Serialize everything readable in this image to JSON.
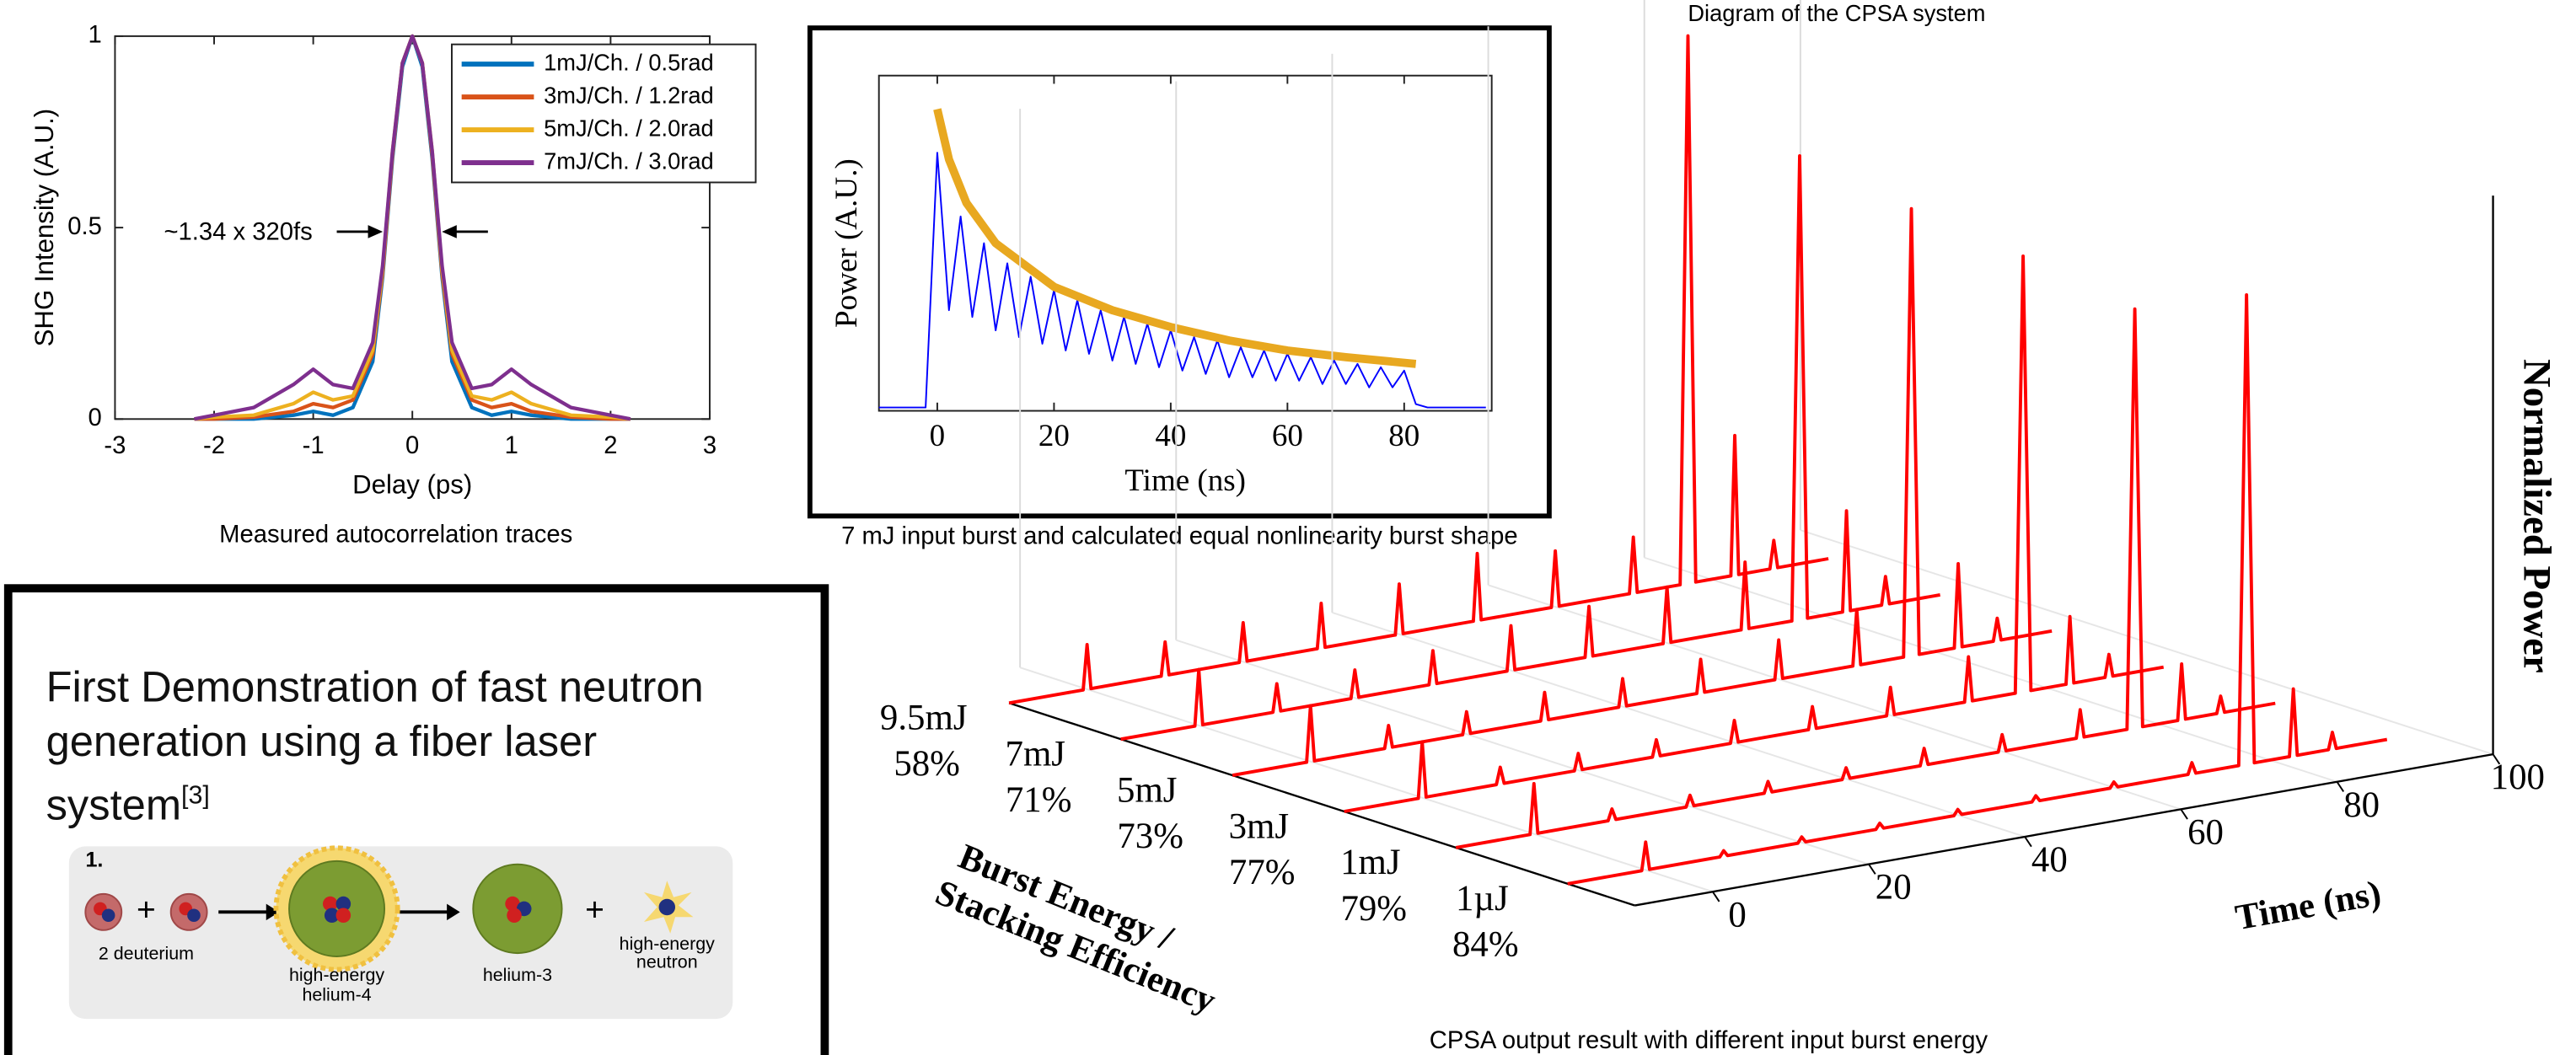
{
  "header": {
    "title": "Diagram of the CPSA system"
  },
  "chart_data": [
    {
      "type": "line",
      "caption": "Measured autocorrelation traces",
      "xlabel": "Delay (ps)",
      "ylabel": "SHG Intensity (A.U.)",
      "annotation": "~1.34 x 320fs",
      "x": [
        -2.2,
        -2,
        -1.6,
        -1.2,
        -1,
        -0.8,
        -0.6,
        -0.4,
        -0.3,
        -0.2,
        -0.1,
        0,
        0.1,
        0.2,
        0.3,
        0.4,
        0.6,
        0.8,
        1,
        1.2,
        1.6,
        2,
        2.2
      ],
      "xlim": [
        -3,
        3
      ],
      "xticks": [
        -3,
        -2,
        -1,
        0,
        1,
        2,
        3
      ],
      "ylim": [
        0,
        1
      ],
      "yticks": [
        0,
        0.5,
        1
      ],
      "legend": "upper right",
      "series": [
        {
          "name": "1mJ/Ch. / 0.5rad",
          "color": "#0072bd",
          "values": [
            0,
            0,
            0,
            0.01,
            0.02,
            0.01,
            0.03,
            0.15,
            0.37,
            0.68,
            0.92,
            1,
            0.92,
            0.68,
            0.37,
            0.15,
            0.03,
            0.01,
            0.02,
            0.01,
            0,
            0,
            0
          ]
        },
        {
          "name": "3mJ/Ch. / 1.2rad",
          "color": "#d95319",
          "values": [
            0,
            0,
            0.005,
            0.02,
            0.04,
            0.03,
            0.05,
            0.17,
            0.38,
            0.69,
            0.93,
            1,
            0.93,
            0.69,
            0.38,
            0.17,
            0.05,
            0.03,
            0.04,
            0.02,
            0.005,
            0,
            0
          ]
        },
        {
          "name": "5mJ/Ch. / 2.0rad",
          "color": "#edb120",
          "values": [
            0,
            0.005,
            0.01,
            0.04,
            0.07,
            0.05,
            0.06,
            0.18,
            0.39,
            0.7,
            0.93,
            1,
            0.93,
            0.7,
            0.39,
            0.18,
            0.06,
            0.05,
            0.07,
            0.04,
            0.01,
            0.005,
            0
          ]
        },
        {
          "name": "7mJ/Ch. / 3.0rad",
          "color": "#7e2f8e",
          "values": [
            0,
            0.01,
            0.03,
            0.09,
            0.13,
            0.09,
            0.08,
            0.2,
            0.4,
            0.7,
            0.93,
            1,
            0.93,
            0.7,
            0.4,
            0.2,
            0.08,
            0.09,
            0.13,
            0.09,
            0.03,
            0.01,
            0
          ]
        }
      ]
    },
    {
      "type": "line",
      "caption": "7 mJ input burst and calculated equal nonlinearity burst shape",
      "xlabel": "Time (ns)",
      "ylabel": "Power (A.U.)",
      "xlim": [
        -10,
        95
      ],
      "xticks": [
        0,
        20,
        40,
        60,
        80
      ],
      "ylim": [
        0,
        1
      ],
      "series": [
        {
          "color": "#0000ff",
          "width": 1,
          "x": [
            -10,
            -8,
            -6,
            -4,
            -2,
            0,
            2,
            4,
            6,
            8,
            10,
            12,
            14,
            16,
            18,
            20,
            22,
            24,
            26,
            28,
            30,
            32,
            34,
            36,
            38,
            40,
            42,
            44,
            46,
            48,
            50,
            52,
            54,
            56,
            58,
            60,
            62,
            64,
            66,
            68,
            70,
            72,
            74,
            76,
            78,
            80,
            82,
            84,
            86,
            88,
            90,
            92,
            94
          ],
          "values": [
            0.01,
            0.01,
            0.01,
            0.01,
            0.01,
            0.77,
            0.3,
            0.58,
            0.28,
            0.5,
            0.24,
            0.44,
            0.22,
            0.4,
            0.2,
            0.36,
            0.18,
            0.33,
            0.17,
            0.3,
            0.15,
            0.28,
            0.14,
            0.26,
            0.13,
            0.24,
            0.12,
            0.22,
            0.11,
            0.21,
            0.1,
            0.19,
            0.1,
            0.18,
            0.09,
            0.17,
            0.09,
            0.16,
            0.08,
            0.15,
            0.08,
            0.14,
            0.07,
            0.13,
            0.07,
            0.12,
            0.02,
            0.01,
            0.01,
            0.01,
            0.01,
            0.01,
            0.01
          ]
        },
        {
          "color": "#e8a820",
          "width": 5,
          "x": [
            0,
            2,
            5,
            10,
            20,
            30,
            40,
            50,
            60,
            70,
            82
          ],
          "values": [
            0.9,
            0.75,
            0.62,
            0.5,
            0.37,
            0.3,
            0.25,
            0.21,
            0.18,
            0.16,
            0.14
          ]
        }
      ]
    },
    {
      "type": "waterfall3d",
      "caption": "CPSA output result with different input burst energy",
      "xlabel": "Time (ns)",
      "ylabel": [
        "Burst Energy /",
        "Stacking Efficiency"
      ],
      "zlabel": "Normalized Power",
      "x": [
        -10,
        -0.5,
        0,
        0.5,
        9.5,
        10,
        10.5,
        19.5,
        20,
        20.5,
        29.5,
        30,
        30.5,
        39.5,
        40,
        40.5,
        49.5,
        50,
        50.5,
        59.5,
        60,
        60.5,
        69.5,
        70,
        70.5,
        76,
        77,
        78,
        82.5,
        83,
        83.5,
        87.5,
        88,
        88.5,
        95
      ],
      "xlim": [
        -10,
        100
      ],
      "xticks": [
        0,
        20,
        40,
        60,
        80,
        100
      ],
      "zlim": [
        0,
        1
      ],
      "series": [
        {
          "name": "9.5mJ",
          "efficiency": "58%",
          "color": "#ff0000",
          "values": [
            0,
            0,
            0.08,
            0,
            0,
            0.06,
            0,
            0,
            0.07,
            0,
            0,
            0.08,
            0,
            0,
            0.09,
            0,
            0,
            0.12,
            0,
            0,
            0.1,
            0,
            0,
            0.1,
            0,
            0,
            0.98,
            0,
            0,
            0.25,
            0,
            0,
            0.05,
            0,
            0
          ]
        },
        {
          "name": "7mJ",
          "efficiency": "71%",
          "color": "#ff0000",
          "values": [
            0,
            0,
            0.1,
            0,
            0,
            0.05,
            0,
            0,
            0.05,
            0,
            0,
            0.06,
            0,
            0,
            0.08,
            0,
            0,
            0.09,
            0,
            0,
            0.1,
            0,
            0,
            0.12,
            0,
            0,
            0.83,
            0,
            0,
            0.18,
            0,
            0,
            0.05,
            0,
            0
          ]
        },
        {
          "name": "5mJ",
          "efficiency": "73%",
          "color": "#ff0000",
          "values": [
            0,
            0,
            0.1,
            0,
            0,
            0.04,
            0,
            0,
            0.04,
            0,
            0,
            0.05,
            0,
            0,
            0.05,
            0,
            0,
            0.06,
            0,
            0,
            0.07,
            0,
            0,
            0.1,
            0,
            0,
            0.8,
            0,
            0,
            0.15,
            0,
            0,
            0.04,
            0,
            0
          ]
        },
        {
          "name": "3mJ",
          "efficiency": "77%",
          "color": "#ff0000",
          "values": [
            0,
            0,
            0.1,
            0,
            0,
            0.03,
            0,
            0,
            0.03,
            0,
            0,
            0.03,
            0,
            0,
            0.04,
            0,
            0,
            0.04,
            0,
            0,
            0.05,
            0,
            0,
            0.08,
            0,
            0,
            0.78,
            0,
            0,
            0.12,
            0,
            0,
            0.04,
            0,
            0
          ]
        },
        {
          "name": "1mJ",
          "efficiency": "79%",
          "color": "#ff0000",
          "values": [
            0,
            0,
            0.09,
            0,
            0,
            0.02,
            0,
            0,
            0.02,
            0,
            0,
            0.02,
            0,
            0,
            0.02,
            0,
            0,
            0.03,
            0,
            0,
            0.03,
            0,
            0,
            0.05,
            0,
            0,
            0.75,
            0,
            0,
            0.1,
            0,
            0,
            0.03,
            0,
            0
          ]
        },
        {
          "name": "1µJ",
          "efficiency": "84%",
          "color": "#ff0000",
          "values": [
            0,
            0,
            0.05,
            0,
            0,
            0.01,
            0,
            0,
            0.01,
            0,
            0,
            0.01,
            0,
            0,
            0.01,
            0,
            0,
            0.01,
            0,
            0,
            0.01,
            0,
            0,
            0.02,
            0,
            0,
            0.84,
            0,
            0,
            0.12,
            0,
            0,
            0.03,
            0,
            0
          ]
        }
      ]
    }
  ],
  "text_box": {
    "title": "First Demonstration of fast neutron generation using a fiber laser system",
    "ref": "[3]",
    "diagram": {
      "step": "1.",
      "plus": "+",
      "deuterium": "2 deuterium",
      "helium4": [
        "high-energy",
        "helium-4"
      ],
      "helium3": "helium-3",
      "neutron": [
        "high-energy",
        "neutron"
      ]
    }
  }
}
